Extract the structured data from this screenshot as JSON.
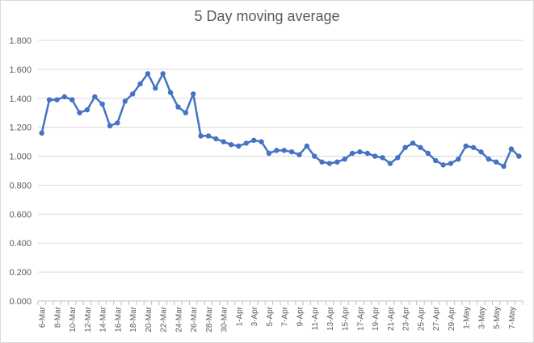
{
  "chart_data": {
    "type": "line",
    "title": "5 Day moving average",
    "xlabel": "",
    "ylabel": "",
    "ylim": [
      0,
      1.8
    ],
    "yticks": [
      "0.000",
      "0.200",
      "0.400",
      "0.600",
      "0.800",
      "1.000",
      "1.200",
      "1.400",
      "1.600",
      "1.800"
    ],
    "grid": true,
    "legend": "none",
    "color": "#4472c4",
    "x": [
      "6-Mar",
      "7-Mar",
      "8-Mar",
      "9-Mar",
      "10-Mar",
      "11-Mar",
      "12-Mar",
      "13-Mar",
      "14-Mar",
      "15-Mar",
      "16-Mar",
      "17-Mar",
      "18-Mar",
      "19-Mar",
      "20-Mar",
      "21-Mar",
      "22-Mar",
      "23-Mar",
      "24-Mar",
      "25-Mar",
      "26-Mar",
      "27-Mar",
      "28-Mar",
      "29-Mar",
      "30-Mar",
      "31-Mar",
      "1-Apr",
      "2-Apr",
      "3-Apr",
      "4-Apr",
      "5-Apr",
      "6-Apr",
      "7-Apr",
      "8-Apr",
      "9-Apr",
      "10-Apr",
      "11-Apr",
      "12-Apr",
      "13-Apr",
      "14-Apr",
      "15-Apr",
      "16-Apr",
      "17-Apr",
      "18-Apr",
      "19-Apr",
      "20-Apr",
      "21-Apr",
      "22-Apr",
      "23-Apr",
      "24-Apr",
      "25-Apr",
      "26-Apr",
      "27-Apr",
      "28-Apr",
      "29-Apr",
      "30-Apr",
      "1-May",
      "2-May",
      "3-May",
      "4-May",
      "5-May",
      "6-May",
      "7-May",
      "8-May"
    ],
    "xticks_shown": [
      "6-Mar",
      "8-Mar",
      "10-Mar",
      "12-Mar",
      "14-Mar",
      "16-Mar",
      "18-Mar",
      "20-Mar",
      "22-Mar",
      "24-Mar",
      "26-Mar",
      "28-Mar",
      "30-Mar",
      "1-Apr",
      "3-Apr",
      "5-Apr",
      "7-Apr",
      "9-Apr",
      "11-Apr",
      "13-Apr",
      "15-Apr",
      "17-Apr",
      "19-Apr",
      "21-Apr",
      "23-Apr",
      "25-Apr",
      "27-Apr",
      "29-Apr",
      "1-May",
      "3-May",
      "5-May",
      "7-May"
    ],
    "values": [
      1.16,
      1.39,
      1.39,
      1.41,
      1.39,
      1.3,
      1.32,
      1.41,
      1.36,
      1.21,
      1.23,
      1.38,
      1.43,
      1.5,
      1.57,
      1.47,
      1.57,
      1.44,
      1.34,
      1.3,
      1.43,
      1.14,
      1.14,
      1.12,
      1.1,
      1.08,
      1.07,
      1.09,
      1.11,
      1.1,
      1.02,
      1.04,
      1.04,
      1.03,
      1.01,
      1.07,
      1.0,
      0.96,
      0.95,
      0.96,
      0.98,
      1.02,
      1.03,
      1.02,
      1.0,
      0.99,
      0.95,
      0.99,
      1.06,
      1.09,
      1.06,
      1.02,
      0.97,
      0.94,
      0.95,
      0.98,
      1.07,
      1.06,
      1.03,
      0.98,
      0.96,
      0.93,
      1.05,
      1.0
    ]
  }
}
